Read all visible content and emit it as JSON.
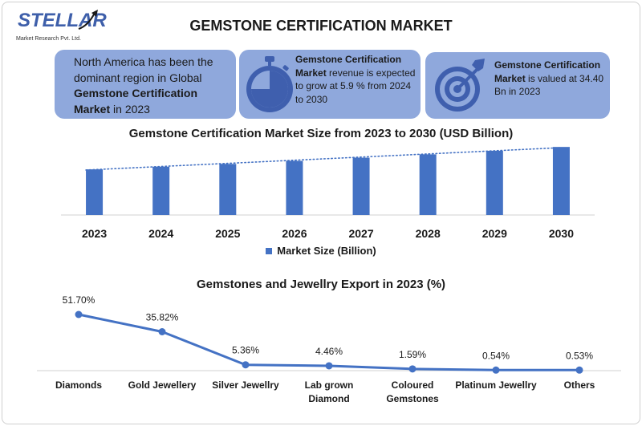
{
  "logo": {
    "name": "STELLAR",
    "subtitle": "Market Research Pvt. Ltd."
  },
  "title": "GEMSTONE CERTIFICATION MARKET",
  "cards": {
    "card1": {
      "pre": "North America has been the dominant region in Global ",
      "bold": "Gemstone Certification Market",
      "post": " in 2023"
    },
    "card2": {
      "bold": "Gemstone Certification Market",
      "post": " revenue is expected to grow at 5.9 % from 2024 to 2030"
    },
    "card3": {
      "bold": "Gemstone Certification Market",
      "post": " is valued at 34.40 Bn in 2023"
    }
  },
  "colors": {
    "accent": "#4472c4",
    "card": "#8fa8dc",
    "icon": "#3f5fae"
  },
  "icons": {
    "card2": "stopwatch-icon",
    "card3": "target-icon"
  },
  "chart_data": [
    {
      "type": "bar",
      "title": "Gemstone Certification Market Size from 2023 to 2030 (USD Billion)",
      "categories": [
        "2023",
        "2024",
        "2025",
        "2026",
        "2027",
        "2028",
        "2029",
        "2030"
      ],
      "series": [
        {
          "name": "Market Size (Billion)",
          "values": [
            34.4,
            36.4,
            38.5,
            40.8,
            43.2,
            45.7,
            48.4,
            51.3
          ]
        }
      ],
      "trendline": "linear, dotted",
      "ylim": [
        0,
        52
      ],
      "legend": "bottom",
      "grid": false
    },
    {
      "type": "line",
      "title": "Gemstones and Jewellry Export in 2023 (%)",
      "categories": [
        "Diamonds",
        "Gold Jewellery",
        "Silver Jewellry",
        "Lab grown Diamond",
        "Coloured Gemstones",
        "Platinum Jewellry",
        "Others"
      ],
      "category_lines": [
        [
          "Diamonds"
        ],
        [
          "Gold Jewellery"
        ],
        [
          "Silver Jewellry"
        ],
        [
          "Lab grown",
          "Diamond"
        ],
        [
          "Coloured",
          "Gemstones"
        ],
        [
          "Platinum Jewellry"
        ],
        [
          "Others"
        ]
      ],
      "values": [
        51.7,
        35.82,
        5.36,
        4.46,
        1.59,
        0.54,
        0.53
      ],
      "labels": [
        "51.70%",
        "35.82%",
        "5.36%",
        "4.46%",
        "1.59%",
        "0.54%",
        "0.53%"
      ],
      "ylim": [
        0,
        60
      ],
      "grid": false
    }
  ]
}
